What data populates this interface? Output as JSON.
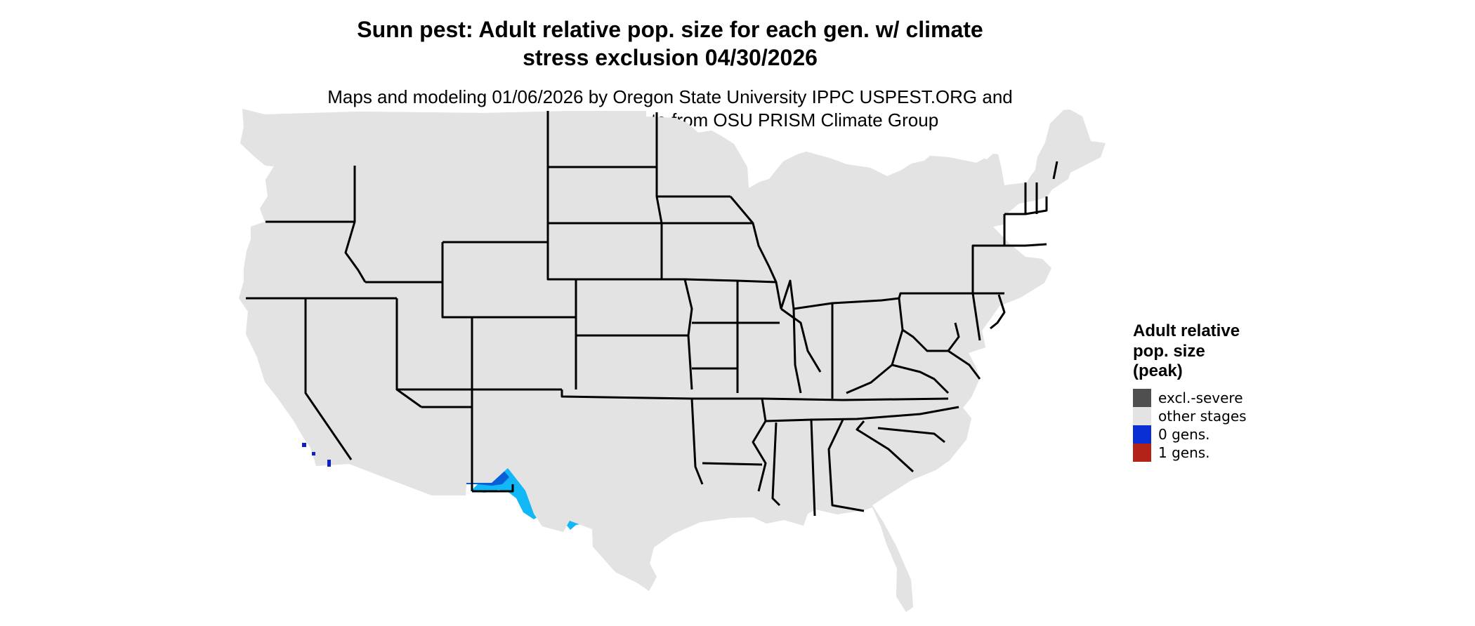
{
  "title": {
    "line1": "Sunn pest: Adult relative pop. size for each gen. w/ climate",
    "line2": "stress exclusion 04/30/2026"
  },
  "subtitle": {
    "line1": "Maps and modeling 01/06/2026 by Oregon State University IPPC USPEST.ORG and",
    "line2": "USDA-APHIS-PPQ; climate data from OSU PRISM Climate Group"
  },
  "map": {
    "colors": {
      "land": "#e3e3e3",
      "border": "#000000",
      "zero_gens_light": "#12b7f5",
      "zero_gens_medium": "#0a5fd9",
      "zero_gens_dark": "#0a22c8"
    }
  },
  "legend": {
    "title_line1": "Adult relative",
    "title_line2": "pop. size",
    "title_line3": "(peak)",
    "items": [
      {
        "label": "excl.-severe",
        "color": "#4f4f4f"
      },
      {
        "label": "other stages",
        "color": "#e3e3e3"
      },
      {
        "label": "0 gens.",
        "color": "#0a2fd4"
      },
      {
        "label": "1 gens.",
        "color": "#b42318"
      }
    ]
  }
}
